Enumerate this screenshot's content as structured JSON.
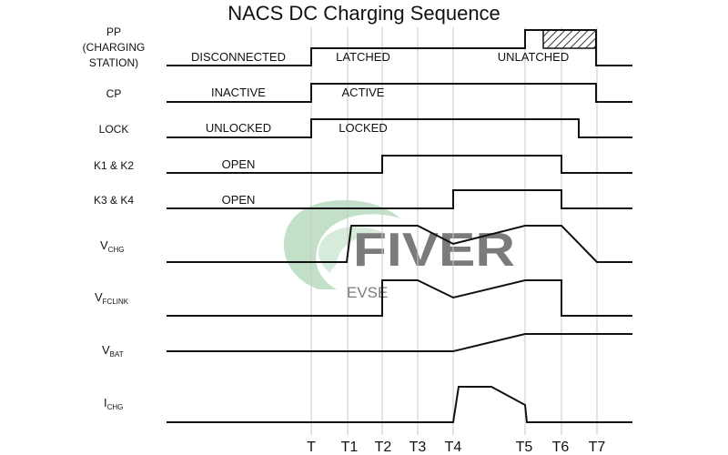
{
  "title": "NACS DC Charging Sequence",
  "time_markers": [
    "T",
    "T1",
    "T2",
    "T3",
    "T4",
    "T5",
    "T6",
    "T7"
  ],
  "signals": {
    "pp": {
      "label_lines": [
        "PP",
        "(CHARGING",
        "STATION)"
      ],
      "states": [
        "DISCONNECTED",
        "LATCHED",
        "UNLATCHED"
      ]
    },
    "cp": {
      "label_lines": [
        "CP"
      ],
      "states": [
        "INACTIVE",
        "ACTIVE"
      ]
    },
    "lock": {
      "label_lines": [
        "LOCK"
      ],
      "states": [
        "UNLOCKED",
        "LOCKED"
      ]
    },
    "k1k2": {
      "label_lines": [
        "K1 & K2"
      ],
      "states": [
        "OPEN"
      ]
    },
    "k3k4": {
      "label_lines": [
        "K3 & K4"
      ],
      "states": [
        "OPEN"
      ]
    },
    "vchg": {
      "label_main": "V",
      "label_sub": "CHG"
    },
    "vfclink": {
      "label_main": "V",
      "label_sub": "FCLINK"
    },
    "vbat": {
      "label_main": "V",
      "label_sub": "BAT"
    },
    "ichg": {
      "label_main": "I",
      "label_sub": "CHG"
    }
  },
  "watermark": {
    "main": "FIVER",
    "sub": "EVSE"
  },
  "colors": {
    "line": "#111111",
    "gridline": "#c8c8c8",
    "watermark_green": "#8fc79a",
    "watermark_gray": "#c9c9c9",
    "hatch": "#333333"
  }
}
